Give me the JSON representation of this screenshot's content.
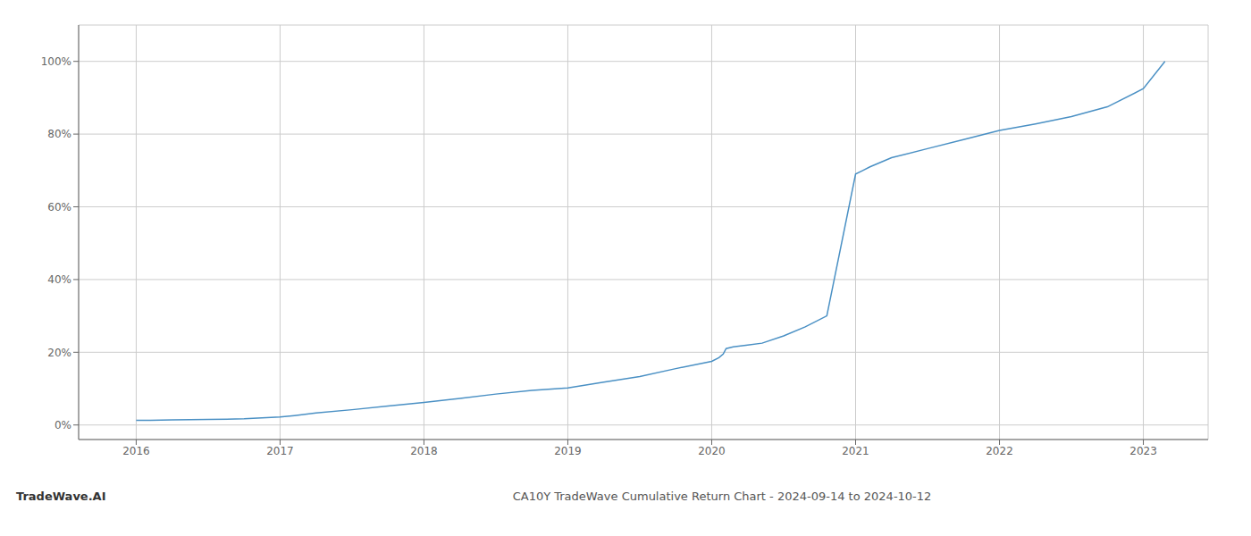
{
  "chart_data": {
    "type": "line",
    "title": "CA10Y TradeWave Cumulative Return Chart - 2024-09-14 to 2024-10-12",
    "annotations": [
      "TradeWave.AI"
    ],
    "x": [
      2016.0,
      2016.1,
      2016.25,
      2016.5,
      2016.75,
      2017.0,
      2017.05,
      2017.1,
      2017.25,
      2017.5,
      2017.75,
      2018.0,
      2018.25,
      2018.5,
      2018.75,
      2019.0,
      2019.25,
      2019.5,
      2019.75,
      2020.0,
      2020.05,
      2020.08,
      2020.1,
      2020.15,
      2020.25,
      2020.35,
      2020.5,
      2020.65,
      2020.8,
      2021.0,
      2021.05,
      2021.1,
      2021.25,
      2021.5,
      2021.75,
      2022.0,
      2022.25,
      2022.5,
      2022.75,
      2023.0,
      2023.15
    ],
    "values": [
      0.013,
      0.013,
      0.014,
      0.015,
      0.017,
      0.022,
      0.024,
      0.026,
      0.033,
      0.042,
      0.052,
      0.062,
      0.073,
      0.085,
      0.095,
      0.102,
      0.118,
      0.133,
      0.155,
      0.175,
      0.185,
      0.195,
      0.21,
      0.215,
      0.22,
      0.225,
      0.245,
      0.27,
      0.3,
      0.69,
      0.7,
      0.71,
      0.735,
      0.76,
      0.785,
      0.81,
      0.828,
      0.848,
      0.875,
      0.925,
      1.0
    ],
    "color": "#4a90c4",
    "xlim": [
      2015.6,
      2023.45
    ],
    "xticks": [
      2016,
      2017,
      2018,
      2019,
      2020,
      2021,
      2022,
      2023
    ],
    "ylim": [
      -0.04,
      1.1
    ],
    "yticks": [
      {
        "value": 0,
        "label": "0%"
      },
      {
        "value": 0.2,
        "label": "20%"
      },
      {
        "value": 0.4,
        "label": "40%"
      },
      {
        "value": 0.6,
        "label": "60%"
      },
      {
        "value": 0.8,
        "label": "80%"
      },
      {
        "value": 1.0,
        "label": "100%"
      }
    ],
    "grid": true
  }
}
